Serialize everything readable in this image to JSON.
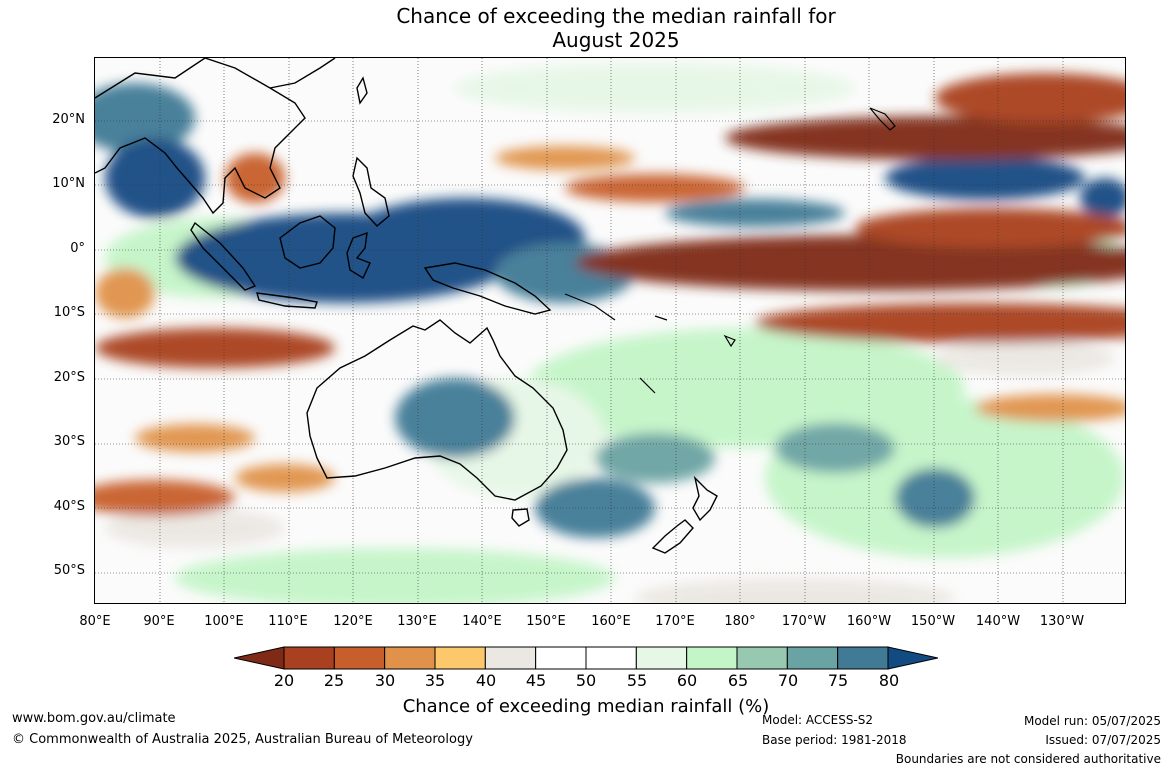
{
  "title": {
    "line1": "Chance of exceeding the median rainfall for",
    "line2": "August 2025"
  },
  "map": {
    "lat_labels": [
      "20°N",
      "10°N",
      "0°",
      "10°S",
      "20°S",
      "30°S",
      "40°S",
      "50°S"
    ],
    "lon_labels": [
      "80°E",
      "90°E",
      "100°E",
      "110°E",
      "120°E",
      "130°E",
      "140°E",
      "150°E",
      "160°E",
      "170°E",
      "180°",
      "170°W",
      "160°W",
      "150°W",
      "140°W",
      "130°W"
    ]
  },
  "colorbar": {
    "ticks": [
      "20",
      "25",
      "30",
      "35",
      "40",
      "45",
      "50",
      "55",
      "60",
      "65",
      "70",
      "75",
      "80"
    ],
    "colors": [
      "#7f2a16",
      "#a9401f",
      "#c85e2c",
      "#e0924a",
      "#fdc86b",
      "#ebe8e3",
      "#ffffff",
      "#ffffff",
      "#e6f7e6",
      "#c4f5c8",
      "#96c9b0",
      "#6aa3a3",
      "#417a95",
      "#124a82"
    ],
    "label": "Chance of exceeding median rainfall (%)"
  },
  "footer": {
    "website": "www.bom.gov.au/climate",
    "copyright": "© Commonwealth of Australia 2025, Australian Bureau of Meteorology",
    "model": "Model: ACCESS-S2",
    "base_period": "Base period: 1981-2018",
    "model_run": "Model run: 05/07/2025",
    "issued": "Issued: 07/07/2025",
    "disclaimer": "Boundaries are not considered authoritative"
  }
}
